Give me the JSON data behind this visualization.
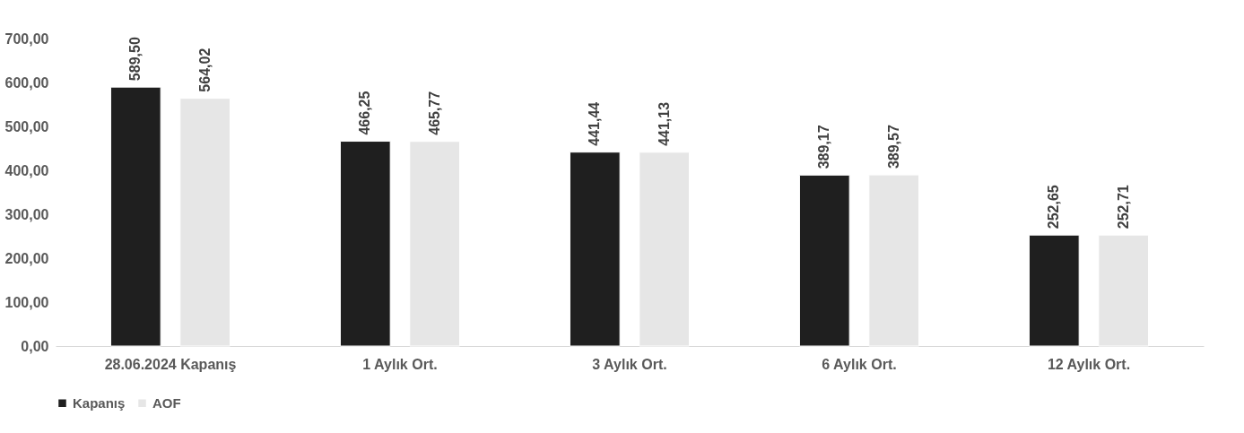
{
  "chart_data": {
    "type": "bar",
    "categories": [
      "28.06.2024 Kapanış",
      "1 Aylık Ort.",
      "3 Aylık Ort.",
      "6 Aylık Ort.",
      "12 Aylık Ort."
    ],
    "series": [
      {
        "name": "Kapanış",
        "color": "#1f1f1f",
        "values": [
          589.5,
          466.25,
          441.44,
          389.17,
          252.65
        ],
        "value_labels": [
          "589,50",
          "466,25",
          "441,44",
          "389,17",
          "252,65"
        ]
      },
      {
        "name": "AOF",
        "color": "#e6e6e6",
        "values": [
          564.02,
          465.77,
          441.13,
          389.57,
          252.71
        ],
        "value_labels": [
          "564,02",
          "465,77",
          "441,13",
          "389,57",
          "252,71"
        ]
      }
    ],
    "ylim": [
      0,
      700
    ],
    "yticks": [
      {
        "value": 0,
        "label": "0,00"
      },
      {
        "value": 100,
        "label": "100,00"
      },
      {
        "value": 200,
        "label": "200,00"
      },
      {
        "value": 300,
        "label": "300,00"
      },
      {
        "value": 400,
        "label": "400,00"
      },
      {
        "value": 500,
        "label": "500,00"
      },
      {
        "value": 600,
        "label": "600,00"
      },
      {
        "value": 700,
        "label": "700,00"
      }
    ],
    "grid": false,
    "legend": "bottom"
  }
}
